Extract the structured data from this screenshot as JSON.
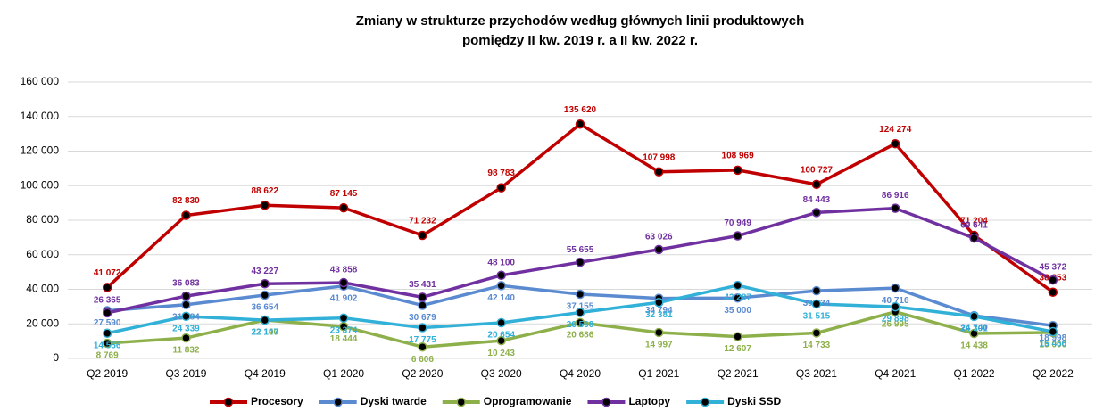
{
  "chart_data": {
    "type": "line",
    "title": "Zmiany w strukturze przychodów według głównych linii produktowych",
    "subtitle": "pomiędzy II kw. 2019 r. a II kw. 2022 r.",
    "categories": [
      "Q2 2019",
      "Q3 2019",
      "Q4 2019",
      "Q1 2020",
      "Q2 2020",
      "Q3 2020",
      "Q4 2020",
      "Q1 2021",
      "Q2 2021",
      "Q3 2021",
      "Q4 2021",
      "Q1 2022",
      "Q2 2022"
    ],
    "series": [
      {
        "name": "Procesory",
        "color": "#c00000",
        "values": [
          41072,
          82830,
          88622,
          87145,
          71232,
          98783,
          135620,
          107998,
          108969,
          100727,
          124274,
          71204,
          38353
        ],
        "value_labels": [
          "41 072",
          "82 830",
          "88 622",
          "87 145",
          "71 232",
          "98 783",
          "135 620",
          "107 998",
          "108 969",
          "100 727",
          "124 274",
          "71 204",
          "38 353"
        ]
      },
      {
        "name": "Dyski twarde",
        "color": "#5a8ad0",
        "values": [
          27590,
          31084,
          36654,
          41902,
          30679,
          42140,
          37155,
          34794,
          35000,
          39134,
          40716,
          24740,
          18998
        ],
        "value_labels": [
          "27 590",
          "31 084",
          "36 654",
          "41 902",
          "30 679",
          "42 140",
          "37 155",
          "34 794",
          "35 000",
          "39 134",
          "40 716",
          "24 740",
          "18 998"
        ]
      },
      {
        "name": "Oprogramowanie",
        "color": "#8db04a",
        "values": [
          8769,
          11832,
          22190,
          18444,
          6606,
          10243,
          20686,
          14997,
          12607,
          14733,
          26995,
          14438,
          15000
        ],
        "value_labels": [
          "8 769",
          "11 832",
          "22 190",
          "18 444",
          "6 606",
          "10 243",
          "20 686",
          "14 997",
          "12 607",
          "14 733",
          "26 995",
          "14 438",
          "15 000"
        ]
      },
      {
        "name": "Laptopy",
        "color": "#7030a0",
        "values": [
          26365,
          36083,
          43227,
          43858,
          35431,
          48100,
          55655,
          63026,
          70949,
          84443,
          86916,
          69641,
          45372
        ],
        "value_labels": [
          "26 365",
          "36 083",
          "43 227",
          "43 858",
          "35 431",
          "48 100",
          "55 655",
          "63 026",
          "70 949",
          "84 443",
          "86 916",
          "69 641",
          "45 372"
        ]
      },
      {
        "name": "Dyski SSD",
        "color": "#31b0d8",
        "values": [
          14556,
          24339,
          22147,
          23374,
          17775,
          20654,
          26568,
          32381,
          42287,
          31515,
          29898,
          24301,
          15466
        ],
        "value_labels": [
          "14 556",
          "24 339",
          "22 147",
          "23 374",
          "17 775",
          "20 654",
          "26 568",
          "32 381",
          "42 287",
          "31 515",
          "29 898",
          "24 301",
          "15 466"
        ]
      }
    ],
    "ylim": [
      0,
      160000
    ],
    "yticks": [
      0,
      {
        "value": 20000,
        "label": "20 000"
      },
      {
        "value": 40000,
        "label": "40 000"
      },
      {
        "value": 60000,
        "label": "60 000"
      },
      {
        "value": 80000,
        "label": "80 000"
      },
      {
        "value": 100000,
        "label": "100 000"
      },
      {
        "value": 120000,
        "label": "120 000"
      },
      {
        "value": 140000,
        "label": "140 000"
      },
      {
        "value": 160000,
        "label": "160 000"
      }
    ],
    "grid": true,
    "legend": "bottom"
  }
}
